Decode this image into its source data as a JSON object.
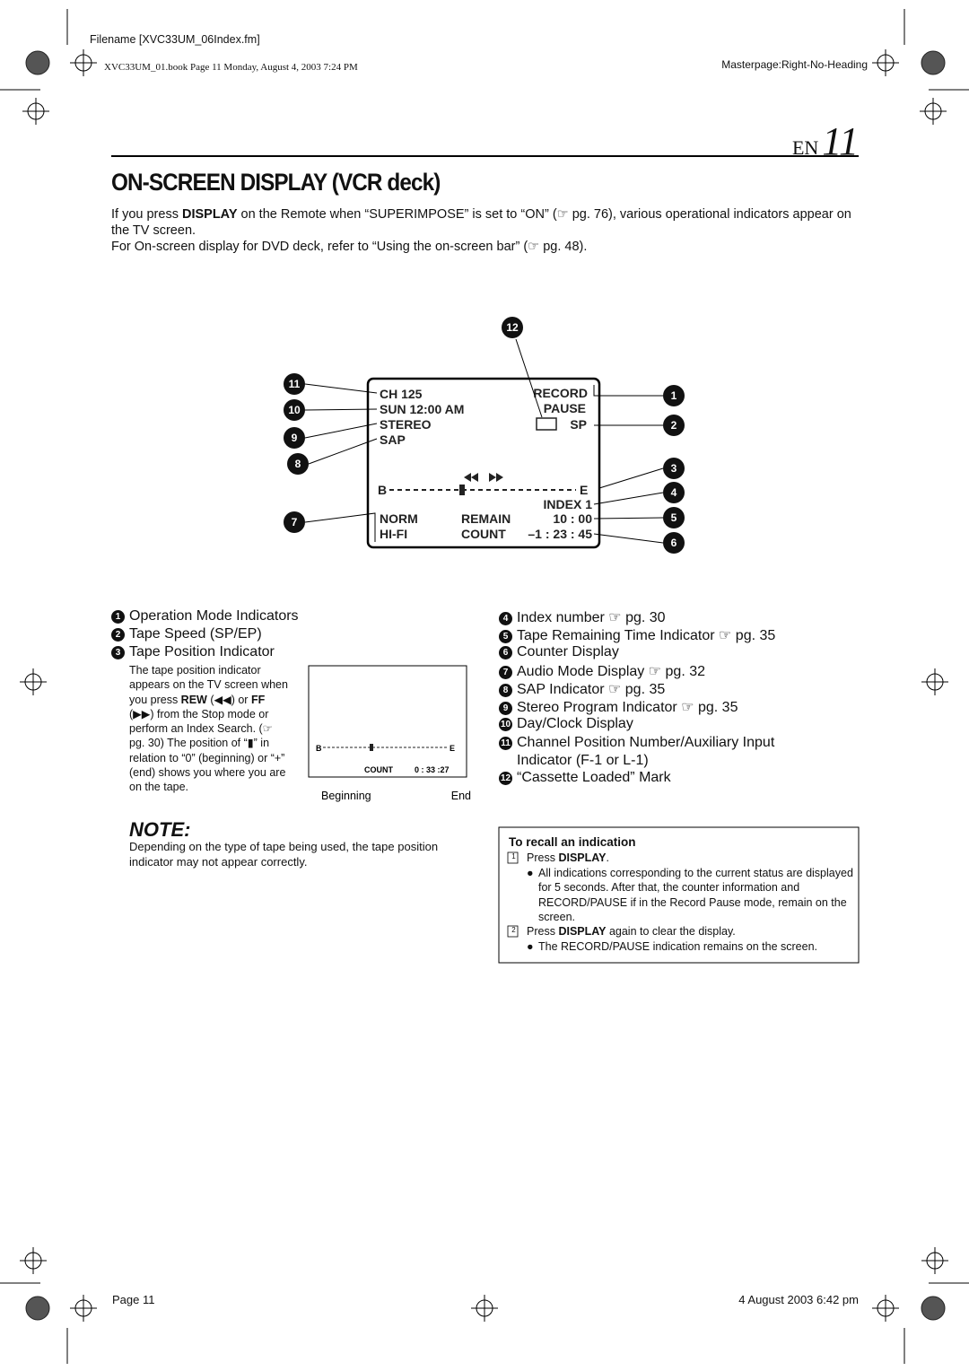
{
  "header": {
    "filename": "Filename [XVC33UM_06Index.fm]",
    "book": "XVC33UM_01.book  Page 11  Monday, August 4, 2003  7:24 PM",
    "masterpage": "Masterpage:Right-No-Heading"
  },
  "page_label": {
    "lang": "EN",
    "number": "11"
  },
  "title": "ON-SCREEN DISPLAY (VCR deck)",
  "intro": [
    [
      "If you press ",
      "DISPLAY",
      " on the Remote when “SUPERIMPOSE” is set to “ON” (☞ pg. 76), various operational indicators appear on the TV screen."
    ],
    "For On-screen display for DVD deck, refer to “Using the on-screen bar” (☞ pg. 48)."
  ],
  "screen": {
    "ch": "CH 125",
    "clock": "SUN 12:00 AM",
    "stereo": "STEREO",
    "sap": "SAP",
    "record": "RECORD",
    "pause": "PAUSE",
    "speed": "SP",
    "begin": "B",
    "end": "E",
    "index": "INDEX   1",
    "norm": "NORM",
    "hifi": "HI-FI",
    "remain": "REMAIN",
    "remain_time": "10 : 00",
    "count": "COUNT",
    "count_time": "–1 : 23 : 45"
  },
  "callouts": [
    "1",
    "2",
    "3",
    "4",
    "5",
    "6",
    "7",
    "8",
    "9",
    "10",
    "11",
    "12"
  ],
  "legend": [
    {
      "num": "1",
      "text": "Operation Mode Indicators"
    },
    {
      "num": "2",
      "text": "Tape Speed (SP/EP)"
    },
    {
      "num": "3",
      "text": "Tape Position Indicator"
    },
    {
      "num": "4",
      "text": "Index number ☞ pg. 30"
    },
    {
      "num": "5",
      "text": "Tape Remaining Time Indicator ☞ pg. 35"
    },
    {
      "num": "6",
      "text": "Counter Display"
    },
    {
      "num": "7",
      "text": "Audio Mode Display ☞ pg. 32"
    },
    {
      "num": "8",
      "text": "SAP Indicator ☞ pg. 35"
    },
    {
      "num": "9",
      "text": "Stereo Program Indicator ☞ pg. 35"
    },
    {
      "num": "10",
      "text": "Day/Clock Display"
    },
    {
      "num": "11",
      "text": "Channel Position Number/Auxiliary Input Indicator (F-1 or L-1)"
    },
    {
      "num": "12",
      "text": "“Cassette Loaded” Mark"
    }
  ],
  "tape_description": [
    "The tape position indicator appears on the TV screen when you press ",
    "REW",
    " (◀◀) or ",
    "FF",
    " (▶▶) from the Stop mode or perform an Index Search. (☞ pg. 30) The position of “▮” in relation to “0” (beginning) or “+” (end) shows you where you are on the tape."
  ],
  "tape_diagram": {
    "begin": "B",
    "end": "E",
    "count": "COUNT",
    "count_time": "0 : 33 :27",
    "beginning": "Beginning",
    "end_label": "End"
  },
  "note": {
    "title": "NOTE:",
    "text": "Depending on the type of tape being used, the tape position indicator may not appear correctly."
  },
  "recall": {
    "title": "To recall an indication",
    "steps": [
      {
        "num": "1",
        "text": [
          "Press ",
          "DISPLAY",
          "."
        ],
        "bullet": "All indications corresponding to the current status are displayed for 5 seconds. After that, the counter information and RECORD/PAUSE if in the Record Pause mode, remain on the screen."
      },
      {
        "num": "2",
        "text": [
          "Press ",
          "DISPLAY",
          " again to clear the display."
        ],
        "bullet": "The RECORD/PAUSE indication remains on the screen."
      }
    ]
  },
  "footer": {
    "page": "Page 11",
    "date": "4 August 2003  6:42 pm"
  }
}
